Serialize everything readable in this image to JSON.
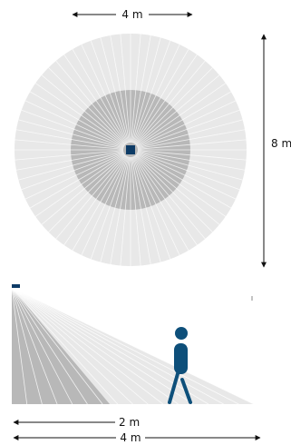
{
  "top_view": {
    "width_label": "4 m",
    "height_label": "8 m"
  },
  "side_view": {
    "inner_label": "2 m",
    "outer_label": "4 m"
  },
  "colors": {
    "outer_zone": "#e8e8e8",
    "inner_zone": "#b8b8b8",
    "ray_line": "#ffffff",
    "sensor": "#0d3b66",
    "person": "#0d4f7a",
    "arrow": "#111111"
  },
  "icons": {
    "sensor": "square-sensor-icon",
    "person": "walking-person-icon"
  }
}
